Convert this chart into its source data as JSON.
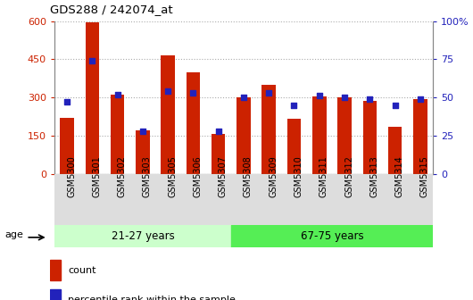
{
  "title": "GDS288 / 242074_at",
  "samples": [
    "GSM5300",
    "GSM5301",
    "GSM5302",
    "GSM5303",
    "GSM5305",
    "GSM5306",
    "GSM5307",
    "GSM5308",
    "GSM5309",
    "GSM5310",
    "GSM5311",
    "GSM5312",
    "GSM5313",
    "GSM5314",
    "GSM5315"
  ],
  "counts": [
    220,
    595,
    310,
    170,
    465,
    400,
    158,
    300,
    350,
    215,
    305,
    300,
    285,
    185,
    295
  ],
  "percentiles": [
    47,
    74,
    52,
    28,
    54,
    53,
    28,
    50,
    53,
    45,
    51,
    50,
    49,
    45,
    49
  ],
  "group1_label": "21-27 years",
  "group2_label": "67-75 years",
  "group1_count": 7,
  "group2_count": 8,
  "bar_color": "#cc2200",
  "scatter_color": "#2222bb",
  "group1_bg": "#ccffcc",
  "group2_bg": "#55ee55",
  "ylim_left": [
    0,
    600
  ],
  "ylim_right": [
    0,
    100
  ],
  "yticks_left": [
    0,
    150,
    300,
    450,
    600
  ],
  "yticks_right": [
    0,
    25,
    50,
    75,
    100
  ],
  "left_color": "#cc2200",
  "right_color": "#2222bb"
}
